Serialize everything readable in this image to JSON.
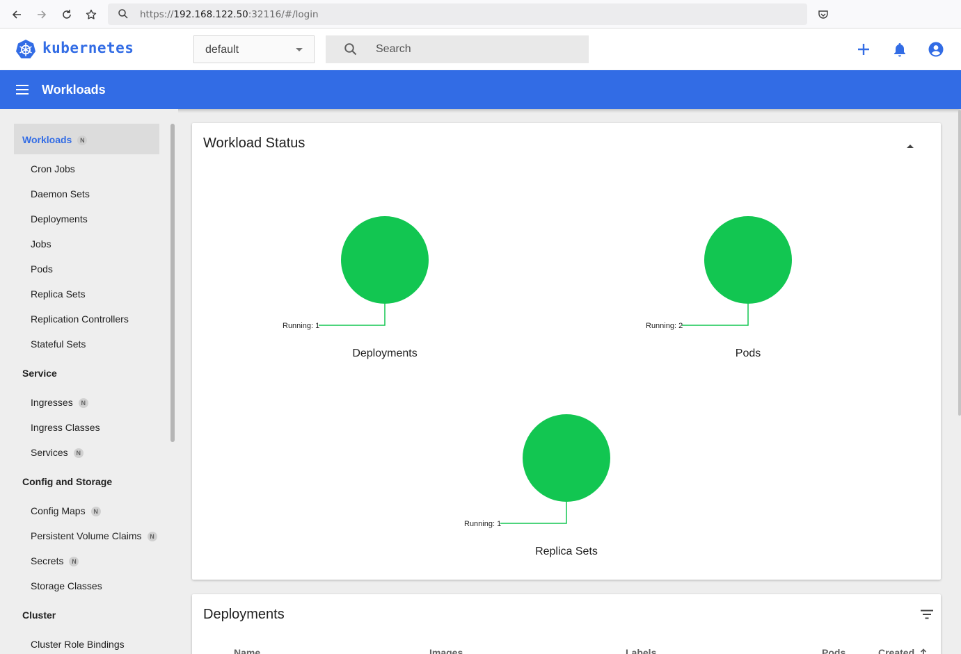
{
  "browser": {
    "url_scheme": "https://",
    "url_host": "192.168.122.50",
    "url_rest": ":32116/#/login"
  },
  "header": {
    "logo_text": "kubernetes",
    "namespace": "default",
    "search_placeholder": "Search"
  },
  "toolbar": {
    "title": "Workloads"
  },
  "sidebar": {
    "workloads": {
      "label": "Workloads",
      "badge": "N",
      "items": [
        "Cron Jobs",
        "Daemon Sets",
        "Deployments",
        "Jobs",
        "Pods",
        "Replica Sets",
        "Replication Controllers",
        "Stateful Sets"
      ]
    },
    "service": {
      "label": "Service",
      "items": [
        {
          "label": "Ingresses",
          "badge": "N"
        },
        {
          "label": "Ingress Classes",
          "badge": ""
        },
        {
          "label": "Services",
          "badge": "N"
        }
      ]
    },
    "config": {
      "label": "Config and Storage",
      "items": [
        {
          "label": "Config Maps",
          "badge": "N"
        },
        {
          "label": "Persistent Volume Claims",
          "badge": "N"
        },
        {
          "label": "Secrets",
          "badge": "N"
        },
        {
          "label": "Storage Classes",
          "badge": ""
        }
      ]
    },
    "cluster": {
      "label": "Cluster",
      "items": [
        "Cluster Role Bindings"
      ]
    }
  },
  "workload_status": {
    "title": "Workload Status",
    "charts": [
      {
        "name": "Deployments",
        "running_label": "Running: 1"
      },
      {
        "name": "Pods",
        "running_label": "Running: 2"
      },
      {
        "name": "Replica Sets",
        "running_label": "Running: 1"
      }
    ]
  },
  "deployments": {
    "title": "Deployments",
    "columns": [
      "Name",
      "Images",
      "Labels",
      "Pods",
      "Created"
    ]
  },
  "colors": {
    "brand": "#326ce5",
    "running": "#12c651"
  },
  "chart_data": [
    {
      "type": "pie",
      "title": "Deployments",
      "categories": [
        "Running"
      ],
      "values": [
        1
      ]
    },
    {
      "type": "pie",
      "title": "Pods",
      "categories": [
        "Running"
      ],
      "values": [
        2
      ]
    },
    {
      "type": "pie",
      "title": "Replica Sets",
      "categories": [
        "Running"
      ],
      "values": [
        1
      ]
    }
  ]
}
